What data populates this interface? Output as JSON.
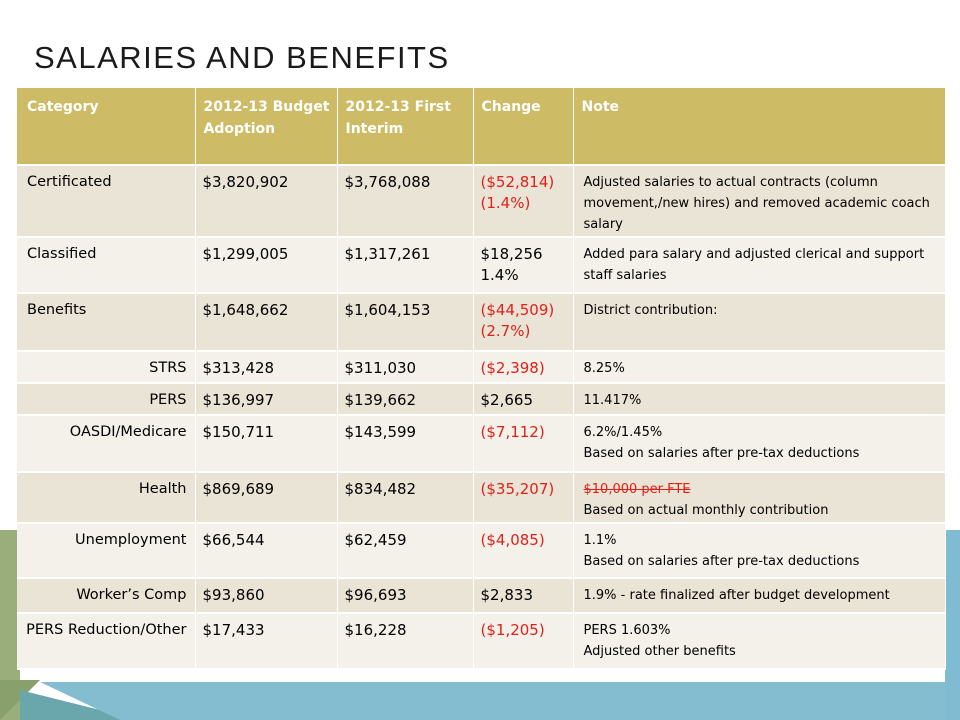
{
  "slide": {
    "title": "SALARIES AND BENEFITS"
  },
  "colors": {
    "header_bg": "#cdbb65",
    "header_text": "#ffffff",
    "row_odd": "#e9e4d5",
    "row_even": "#f4f1ea",
    "negative": "#e0201a",
    "accent_green": "#9aae7c",
    "accent_blue": "#7fbcd2",
    "accent_teal": "#6aa7ad"
  },
  "table": {
    "headers": {
      "category": "Category",
      "budget_adoption": "2012-13 Budget Adoption",
      "first_interim": "2012-13 First Interim",
      "change": "Change",
      "note": "Note"
    },
    "rows": [
      {
        "category": "Certificated",
        "budget": "$3,820,902",
        "interim": "$3,768,088",
        "change": "($52,814) (1.4%)",
        "note": "Adjusted salaries to actual contracts (column movement,/new hires) and removed academic coach salary"
      },
      {
        "category": "Classified",
        "budget": "$1,299,005",
        "interim": "$1,317,261",
        "change": "$18,256 1.4%",
        "note": "Added para salary and adjusted clerical and support staff salaries"
      },
      {
        "category": "Benefits",
        "budget": "$1,648,662",
        "interim": "$1,604,153",
        "change": "($44,509) (2.7%)",
        "note": "District contribution:"
      },
      {
        "category": "STRS",
        "budget": "$313,428",
        "interim": "$311,030",
        "change": "($2,398)",
        "note": "8.25%"
      },
      {
        "category": "PERS",
        "budget": "$136,997",
        "interim": "$139,662",
        "change": "$2,665",
        "note": "11.417%"
      },
      {
        "category": "OASDI/Medicare",
        "budget": "$150,711",
        "interim": "$143,599",
        "change": "($7,112)",
        "note_line1": "6.2%/1.45%",
        "note_line2": "Based on salaries after pre-tax deductions"
      },
      {
        "category": "Health",
        "budget": "$869,689",
        "interim": "$834,482",
        "change": "($35,207)",
        "note_struck": "$10,000 per FTE",
        "note_line2": "Based on actual monthly contribution"
      },
      {
        "category": "Unemployment",
        "budget": "$66,544",
        "interim": "$62,459",
        "change": "($4,085)",
        "note_line1": "1.1%",
        "note_line2": "Based on salaries after pre-tax deductions"
      },
      {
        "category": "Worker’s Comp",
        "budget": "$93,860",
        "interim": "$96,693",
        "change": "$2,833",
        "note": "1.9% - rate finalized after budget development"
      },
      {
        "category": "PERS Reduction/Other",
        "budget": "$17,433",
        "interim": "$16,228",
        "change": "($1,205)",
        "note_line1": " PERS 1.603%",
        "note_line2": "Adjusted other benefits"
      }
    ]
  }
}
